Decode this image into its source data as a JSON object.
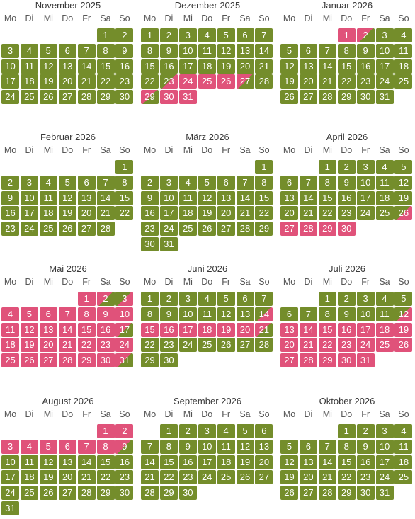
{
  "weekday_labels": [
    "Mo",
    "Di",
    "Mi",
    "Do",
    "Fr",
    "Sa",
    "So"
  ],
  "legend_colors": {
    "available": "#748d2b",
    "booked": "#e0527a"
  },
  "months": [
    {
      "title": "November 2025",
      "offset": 5,
      "days": 30,
      "status": {}
    },
    {
      "title": "Dezember 2025",
      "offset": 0,
      "days": 31,
      "status": {
        "23": "gr",
        "24": "r",
        "25": "r",
        "26": "r",
        "27": "rg",
        "29": "rg",
        "30": "r",
        "31": "r"
      }
    },
    {
      "title": "Januar 2026",
      "offset": 3,
      "days": 31,
      "status": {
        "1": "r",
        "2": "rg"
      }
    },
    {
      "title": "Februar 2026",
      "offset": 6,
      "days": 28,
      "status": {}
    },
    {
      "title": "März 2026",
      "offset": 6,
      "days": 31,
      "status": {}
    },
    {
      "title": "April 2026",
      "offset": 2,
      "days": 30,
      "status": {
        "26": "gr",
        "27": "r",
        "28": "r",
        "29": "r",
        "30": "r"
      }
    },
    {
      "title": "Mai 2026",
      "offset": 4,
      "days": 31,
      "status": {
        "1": "r",
        "2": "rg",
        "3": "gr",
        "4": "r",
        "5": "r",
        "6": "r",
        "7": "r",
        "8": "r",
        "9": "r",
        "10": "r",
        "11": "r",
        "12": "r",
        "13": "r",
        "14": "r",
        "15": "r",
        "16": "r",
        "17": "rg",
        "18": "r",
        "19": "r",
        "20": "r",
        "21": "r",
        "22": "r",
        "23": "r",
        "24": "r",
        "25": "r",
        "26": "r",
        "27": "r",
        "28": "r",
        "29": "r",
        "30": "r",
        "31": "rg"
      }
    },
    {
      "title": "Juni 2026",
      "offset": 0,
      "days": 30,
      "status": {
        "14": "gr",
        "15": "r",
        "16": "r",
        "17": "r",
        "18": "r",
        "19": "r",
        "20": "r",
        "21": "rg"
      }
    },
    {
      "title": "Juli 2026",
      "offset": 2,
      "days": 31,
      "status": {
        "12": "gr",
        "13": "r",
        "14": "r",
        "15": "r",
        "16": "r",
        "17": "r",
        "18": "r",
        "19": "r",
        "20": "r",
        "21": "r",
        "22": "r",
        "23": "r",
        "24": "r",
        "25": "r",
        "26": "r",
        "27": "r",
        "28": "r",
        "29": "r",
        "30": "r",
        "31": "r"
      }
    },
    {
      "title": "August 2026",
      "offset": 5,
      "days": 31,
      "status": {
        "1": "r",
        "2": "r",
        "3": "r",
        "4": "r",
        "5": "r",
        "6": "r",
        "7": "r",
        "8": "r",
        "9": "rg"
      }
    },
    {
      "title": "September 2026",
      "offset": 1,
      "days": 30,
      "status": {}
    },
    {
      "title": "Oktober 2026",
      "offset": 3,
      "days": 31,
      "status": {}
    }
  ]
}
